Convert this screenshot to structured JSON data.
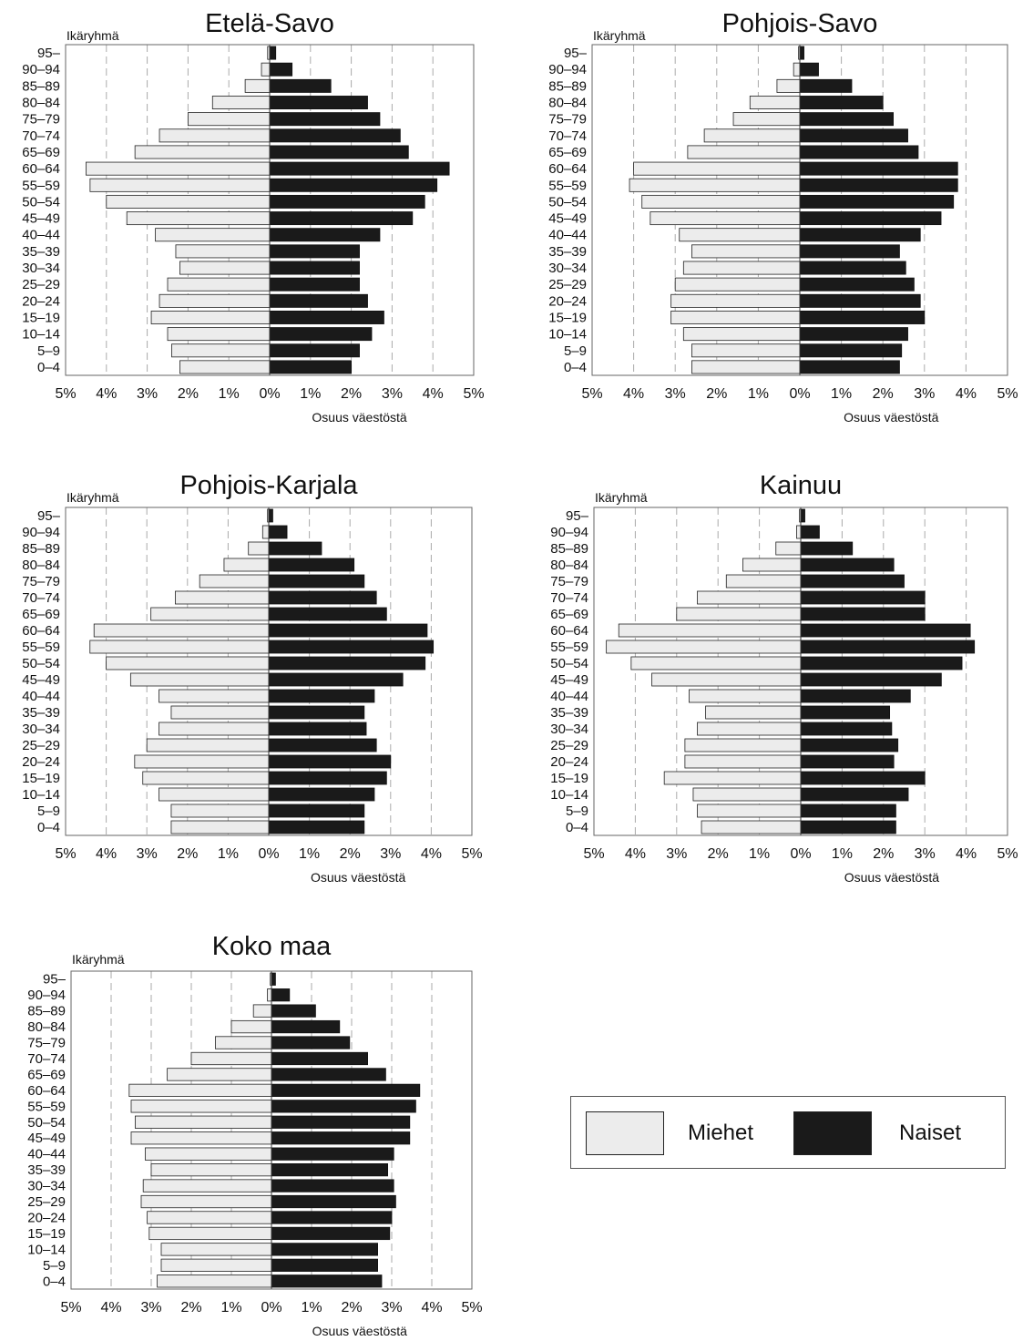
{
  "colors": {
    "male": "#ececec",
    "female": "#1a1a1a",
    "grid": "#aaaaaa",
    "border": "#666666"
  },
  "legend": {
    "male_label": "Miehet",
    "female_label": "Naiset"
  },
  "chart_data": [
    {
      "type": "bar",
      "orientation": "horizontal",
      "subtype": "population-pyramid",
      "title": "Etelä-Savo",
      "ylabel": "Ikäryhmä",
      "xlabel": "Osuus väestöstä",
      "xlim": [
        -5,
        5
      ],
      "x_tick_labels": [
        "5%",
        "4%",
        "3%",
        "2%",
        "1%",
        "0%",
        "1%",
        "2%",
        "3%",
        "4%",
        "5%"
      ],
      "grid": true,
      "categories": [
        "95–",
        "90–94",
        "85–89",
        "80–84",
        "75–79",
        "70–74",
        "65–69",
        "60–64",
        "55–59",
        "50–54",
        "45–49",
        "40–44",
        "35–39",
        "30–34",
        "25–29",
        "20–24",
        "15–19",
        "10–14",
        "5–9",
        "0–4"
      ],
      "series": [
        {
          "name": "Miehet",
          "values": [
            0.05,
            0.2,
            0.6,
            1.4,
            2.0,
            2.7,
            3.3,
            4.5,
            4.4,
            4.0,
            3.5,
            2.8,
            2.3,
            2.2,
            2.5,
            2.7,
            2.9,
            2.5,
            2.4,
            2.2
          ]
        },
        {
          "name": "Naiset",
          "values": [
            0.15,
            0.55,
            1.5,
            2.4,
            2.7,
            3.2,
            3.4,
            4.4,
            4.1,
            3.8,
            3.5,
            2.7,
            2.2,
            2.2,
            2.2,
            2.4,
            2.8,
            2.5,
            2.2,
            2.0
          ]
        }
      ]
    },
    {
      "type": "bar",
      "orientation": "horizontal",
      "subtype": "population-pyramid",
      "title": "Pohjois-Savo",
      "ylabel": "Ikäryhmä",
      "xlabel": "Osuus väestöstä",
      "xlim": [
        -5,
        5
      ],
      "x_tick_labels": [
        "5%",
        "4%",
        "3%",
        "2%",
        "1%",
        "0%",
        "1%",
        "2%",
        "3%",
        "4%",
        "5%"
      ],
      "grid": true,
      "categories": [
        "95–",
        "90–94",
        "85–89",
        "80–84",
        "75–79",
        "70–74",
        "65–69",
        "60–64",
        "55–59",
        "50–54",
        "45–49",
        "40–44",
        "35–39",
        "30–34",
        "25–29",
        "20–24",
        "15–19",
        "10–14",
        "5–9",
        "0–4"
      ],
      "series": [
        {
          "name": "Miehet",
          "values": [
            0.03,
            0.15,
            0.55,
            1.2,
            1.6,
            2.3,
            2.7,
            4.0,
            4.1,
            3.8,
            3.6,
            2.9,
            2.6,
            2.8,
            3.0,
            3.1,
            3.1,
            2.8,
            2.6,
            2.6
          ]
        },
        {
          "name": "Naiset",
          "values": [
            0.1,
            0.45,
            1.25,
            2.0,
            2.25,
            2.6,
            2.85,
            3.8,
            3.8,
            3.7,
            3.4,
            2.9,
            2.4,
            2.55,
            2.75,
            2.9,
            3.0,
            2.6,
            2.45,
            2.4
          ]
        }
      ]
    },
    {
      "type": "bar",
      "orientation": "horizontal",
      "subtype": "population-pyramid",
      "title": "Pohjois-Karjala",
      "ylabel": "Ikäryhmä",
      "xlabel": "Osuus väestöstä",
      "xlim": [
        -5,
        5
      ],
      "x_tick_labels": [
        "5%",
        "4%",
        "3%",
        "2%",
        "1%",
        "0%",
        "1%",
        "2%",
        "3%",
        "4%",
        "5%"
      ],
      "grid": true,
      "categories": [
        "95–",
        "90–94",
        "85–89",
        "80–84",
        "75–79",
        "70–74",
        "65–69",
        "60–64",
        "55–59",
        "50–54",
        "45–49",
        "40–44",
        "35–39",
        "30–34",
        "25–29",
        "20–24",
        "15–19",
        "10–14",
        "5–9",
        "0–4"
      ],
      "series": [
        {
          "name": "Miehet",
          "values": [
            0.03,
            0.15,
            0.5,
            1.1,
            1.7,
            2.3,
            2.9,
            4.3,
            4.4,
            4.0,
            3.4,
            2.7,
            2.4,
            2.7,
            3.0,
            3.3,
            3.1,
            2.7,
            2.4,
            2.4
          ]
        },
        {
          "name": "Naiset",
          "values": [
            0.1,
            0.45,
            1.3,
            2.1,
            2.35,
            2.65,
            2.9,
            3.9,
            4.05,
            3.85,
            3.3,
            2.6,
            2.35,
            2.4,
            2.65,
            3.0,
            2.9,
            2.6,
            2.35,
            2.35
          ]
        }
      ]
    },
    {
      "type": "bar",
      "orientation": "horizontal",
      "subtype": "population-pyramid",
      "title": "Kainuu",
      "ylabel": "Ikäryhmä",
      "xlabel": "Osuus väestöstä",
      "xlim": [
        -5,
        5
      ],
      "x_tick_labels": [
        "5%",
        "4%",
        "3%",
        "2%",
        "1%",
        "0%",
        "1%",
        "2%",
        "3%",
        "4%",
        "5%"
      ],
      "grid": true,
      "categories": [
        "95–",
        "90–94",
        "85–89",
        "80–84",
        "75–79",
        "70–74",
        "65–69",
        "60–64",
        "55–59",
        "50–54",
        "45–49",
        "40–44",
        "35–39",
        "30–34",
        "25–29",
        "20–24",
        "15–19",
        "10–14",
        "5–9",
        "0–4"
      ],
      "series": [
        {
          "name": "Miehet",
          "values": [
            0.03,
            0.1,
            0.6,
            1.4,
            1.8,
            2.5,
            3.0,
            4.4,
            4.7,
            4.1,
            3.6,
            2.7,
            2.3,
            2.5,
            2.8,
            2.8,
            3.3,
            2.6,
            2.5,
            2.4
          ]
        },
        {
          "name": "Naiset",
          "values": [
            0.1,
            0.45,
            1.25,
            2.25,
            2.5,
            3.0,
            3.0,
            4.1,
            4.2,
            3.9,
            3.4,
            2.65,
            2.15,
            2.2,
            2.35,
            2.25,
            3.0,
            2.6,
            2.3,
            2.3
          ]
        }
      ]
    },
    {
      "type": "bar",
      "orientation": "horizontal",
      "subtype": "population-pyramid",
      "title": "Koko maa",
      "ylabel": "Ikäryhmä",
      "xlabel": "Osuus väestöstä",
      "xlim": [
        -5,
        5
      ],
      "x_tick_labels": [
        "5%",
        "4%",
        "3%",
        "2%",
        "1%",
        "0%",
        "1%",
        "2%",
        "3%",
        "4%",
        "5%"
      ],
      "grid": true,
      "categories": [
        "95–",
        "90–94",
        "85–89",
        "80–84",
        "75–79",
        "70–74",
        "65–69",
        "60–64",
        "55–59",
        "50–54",
        "45–49",
        "40–44",
        "35–39",
        "30–34",
        "25–29",
        "20–24",
        "15–19",
        "10–14",
        "5–9",
        "0–4"
      ],
      "series": [
        {
          "name": "Miehet",
          "values": [
            0.03,
            0.1,
            0.45,
            1.0,
            1.4,
            2.0,
            2.6,
            3.55,
            3.5,
            3.4,
            3.5,
            3.15,
            3.0,
            3.2,
            3.25,
            3.1,
            3.05,
            2.75,
            2.75,
            2.85
          ]
        },
        {
          "name": "Naiset",
          "values": [
            0.1,
            0.45,
            1.1,
            1.7,
            1.95,
            2.4,
            2.85,
            3.7,
            3.6,
            3.45,
            3.45,
            3.05,
            2.9,
            3.05,
            3.1,
            3.0,
            2.95,
            2.65,
            2.65,
            2.75
          ]
        }
      ]
    }
  ]
}
